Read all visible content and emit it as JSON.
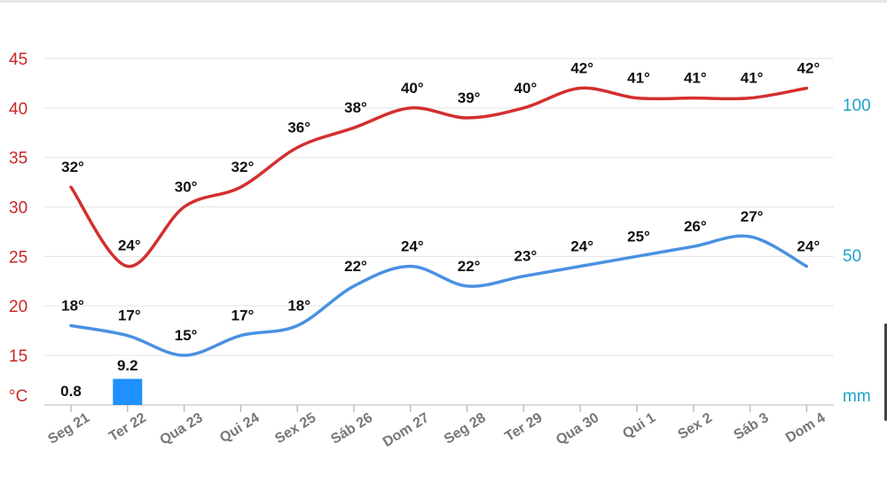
{
  "chart_data": {
    "type": "line",
    "categories": [
      "Seg 21",
      "Ter 22",
      "Qua 23",
      "Qui 24",
      "Sex 25",
      "Sáb 26",
      "Dom 27",
      "Seg 28",
      "Ter 29",
      "Qua 30",
      "Qui 1",
      "Sex 2",
      "Sáb 3",
      "Dom 4"
    ],
    "series": [
      {
        "values": [
          32,
          24,
          30,
          32,
          36,
          38,
          40,
          39,
          40,
          42,
          41,
          41,
          41,
          42
        ],
        "labels": [
          "32°",
          "24°",
          "30°",
          "32°",
          "36°",
          "38°",
          "40°",
          "39°",
          "40°",
          "42°",
          "41°",
          "41°",
          "41°",
          "42°"
        ],
        "color": "#d32f2f"
      },
      {
        "values": [
          18,
          17,
          15,
          17,
          18,
          22,
          24,
          22,
          23,
          24,
          25,
          26,
          27,
          24
        ],
        "labels": [
          "18°",
          "17°",
          "15°",
          "17°",
          "18°",
          "22°",
          "24°",
          "22°",
          "23°",
          "24°",
          "25°",
          "26°",
          "27°",
          "24°"
        ],
        "color": "#4a90e2"
      }
    ],
    "precipitation": {
      "values": [
        0.8,
        9.2,
        0,
        0,
        0,
        0,
        0,
        0,
        0,
        0,
        0,
        0,
        0,
        0
      ],
      "labels": [
        "0.8",
        "9.2"
      ],
      "color": "#1e90ff"
    },
    "y_left": {
      "ticks": [
        "45",
        "40",
        "35",
        "30",
        "25",
        "20",
        "15"
      ],
      "unit": "°C",
      "ylim": [
        15,
        45
      ],
      "color": "#c62828"
    },
    "y_right": {
      "ticks": [
        "100",
        "50"
      ],
      "unit": "mm",
      "color": "#1ea0c8"
    },
    "grid": true
  }
}
